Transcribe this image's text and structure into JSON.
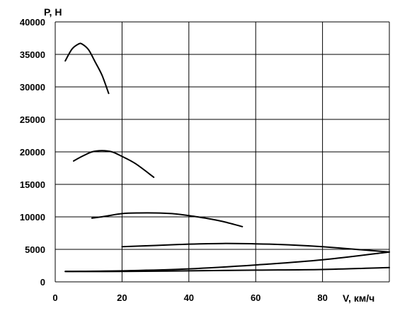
{
  "chart_data": {
    "type": "line",
    "title": "",
    "xlabel": "V, км/ч",
    "ylabel": "P, Н",
    "xlim": [
      0,
      100
    ],
    "ylim": [
      0,
      40000
    ],
    "grid": true,
    "x_ticks": [
      "0",
      "20",
      "40",
      "60",
      "80"
    ],
    "y_ticks": [
      "0",
      "5000",
      "10000",
      "15000",
      "20000",
      "25000",
      "30000",
      "35000",
      "40000"
    ],
    "series": [
      {
        "x": [
          3,
          5,
          7,
          8,
          10,
          12,
          14,
          16
        ],
        "y": [
          34000,
          35800,
          36600,
          36600,
          35700,
          33800,
          31800,
          29000
        ]
      },
      {
        "x": [
          5.5,
          8,
          11,
          14,
          17,
          20,
          24,
          29.5
        ],
        "y": [
          18600,
          19300,
          20000,
          20200,
          20000,
          19300,
          18200,
          16100
        ]
      },
      {
        "x": [
          11,
          15,
          20,
          25,
          30,
          35,
          40,
          45,
          50,
          56
        ],
        "y": [
          9800,
          10100,
          10500,
          10600,
          10600,
          10500,
          10200,
          9800,
          9300,
          8500
        ]
      },
      {
        "x": [
          20,
          30,
          40,
          50,
          60,
          70,
          80,
          90,
          100
        ],
        "y": [
          5400,
          5600,
          5800,
          5900,
          5850,
          5700,
          5400,
          5000,
          4600
        ]
      },
      {
        "x": [
          3,
          20,
          40,
          60,
          80,
          100
        ],
        "y": [
          1600,
          1700,
          2000,
          2600,
          3400,
          4600
        ]
      },
      {
        "x": [
          3,
          20,
          40,
          60,
          80,
          100
        ],
        "y": [
          1600,
          1600,
          1700,
          1800,
          1900,
          2200
        ]
      }
    ]
  }
}
